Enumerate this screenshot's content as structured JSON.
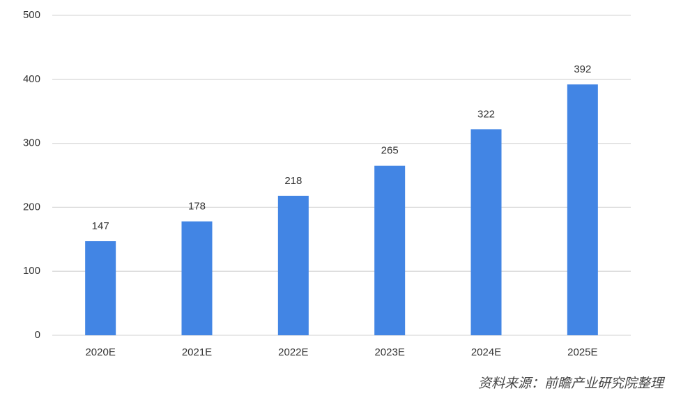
{
  "chart_data": {
    "type": "bar",
    "categories": [
      "2020E",
      "2021E",
      "2022E",
      "2023E",
      "2024E",
      "2025E"
    ],
    "values": [
      147,
      178,
      218,
      265,
      322,
      392
    ],
    "color": "#4285e4",
    "ylim": [
      0,
      500
    ],
    "yticks": [
      0,
      100,
      200,
      300,
      400,
      500
    ],
    "grid": true,
    "data_labels": true,
    "annotation": "资料来源：前瞻产业研究院整理"
  }
}
